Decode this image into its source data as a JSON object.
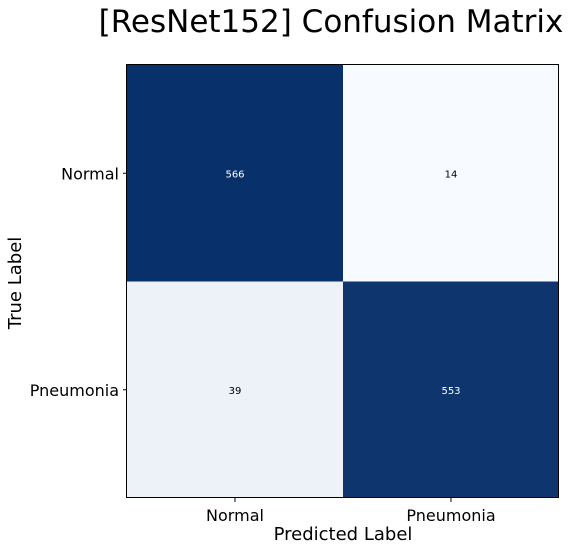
{
  "chart_data": {
    "type": "heatmap",
    "title": "[ResNet152] Confusion Matrix",
    "xlabel": "Predicted Label",
    "ylabel": "True Label",
    "x_categories": [
      "Normal",
      "Pneumonia"
    ],
    "y_categories": [
      "Normal",
      "Pneumonia"
    ],
    "values": [
      [
        566,
        14
      ],
      [
        39,
        553
      ]
    ],
    "colormap": "Blues",
    "colors": {
      "max": "#08306b",
      "min": "#f7fbff"
    },
    "value_range": [
      14,
      566
    ]
  }
}
